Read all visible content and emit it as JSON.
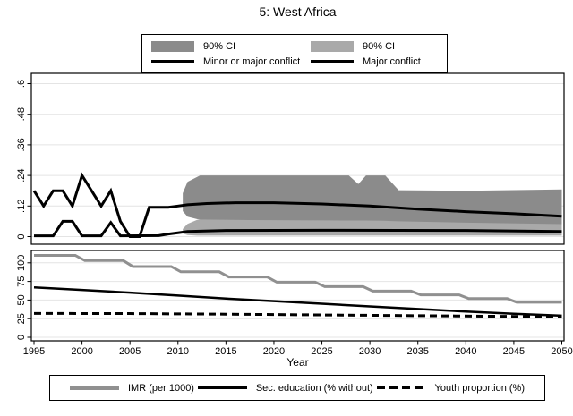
{
  "title": "5: West Africa",
  "colors": {
    "ci_dark": "#8b8b8b",
    "ci_light": "#a9a9a9",
    "gray_line": "#909090",
    "black": "#000000",
    "grid": "#e4e4e4",
    "border": "#000000"
  },
  "legend_top": {
    "items": [
      {
        "swatch": "box-dark",
        "label": "90% CI"
      },
      {
        "swatch": "box-light",
        "label": "90% CI"
      },
      {
        "swatch": "line-black",
        "label": "Minor or major conflict"
      },
      {
        "swatch": "line-black",
        "label": "Major conflict"
      }
    ]
  },
  "legend_bottom": {
    "items": [
      {
        "swatch": "line-gray",
        "label": "IMR (per 1000)"
      },
      {
        "swatch": "line-black",
        "label": "Sec. education (% without)"
      },
      {
        "swatch": "line-dashed",
        "label": "Youth proportion (%)"
      }
    ]
  },
  "chart_data": [
    {
      "id": "conflict-probability-panel",
      "type": "line",
      "ylim": [
        0,
        0.6
      ],
      "yticks": [
        0,
        0.12,
        0.24,
        0.36,
        0.48,
        0.6
      ],
      "ytick_labels": [
        "0",
        ".12",
        ".24",
        ".36",
        ".48",
        ".6"
      ],
      "x_range": [
        1995,
        2050
      ],
      "grid": true,
      "bands": [
        {
          "name": "90% CI Major conflict",
          "color_key": "ci_light",
          "x": [
            2010.5,
            2011,
            2012,
            2020,
            2035,
            2050
          ],
          "lower": [
            0.012,
            0.006,
            0.004,
            0.004,
            0.004,
            0.004
          ],
          "upper": [
            0.03,
            0.05,
            0.066,
            0.066,
            0.062,
            0.057
          ]
        },
        {
          "name": "90% CI Minor or major conflict",
          "color_key": "ci_dark",
          "x": [
            2010.5,
            2011,
            2012.3,
            2027.8,
            2028.8,
            2029.6,
            2031.6,
            2033,
            2040,
            2050
          ],
          "lower": [
            0.1,
            0.078,
            0.066,
            0.063,
            0.063,
            0.063,
            0.062,
            0.06,
            0.055,
            0.049
          ],
          "upper": [
            0.17,
            0.215,
            0.24,
            0.24,
            0.206,
            0.24,
            0.24,
            0.182,
            0.18,
            0.185
          ]
        }
      ],
      "series": [
        {
          "name": "Minor or major conflict",
          "color_key": "black",
          "width": 3,
          "points": [
            [
              1995,
              0.18
            ],
            [
              1996,
              0.12
            ],
            [
              1997,
              0.18
            ],
            [
              1998,
              0.18
            ],
            [
              1999,
              0.12
            ],
            [
              2000,
              0.24
            ],
            [
              2001,
              0.18
            ],
            [
              2002,
              0.12
            ],
            [
              2003,
              0.18
            ],
            [
              2004,
              0.06
            ],
            [
              2005,
              0
            ],
            [
              2006,
              0
            ],
            [
              2007,
              0.115
            ],
            [
              2008,
              0.115
            ],
            [
              2009,
              0.115
            ],
            [
              2010,
              0.12
            ],
            [
              2011,
              0.125
            ],
            [
              2013,
              0.13
            ],
            [
              2016,
              0.133
            ],
            [
              2020,
              0.133
            ],
            [
              2025,
              0.128
            ],
            [
              2030,
              0.12
            ],
            [
              2035,
              0.108
            ],
            [
              2040,
              0.098
            ],
            [
              2045,
              0.09
            ],
            [
              2050,
              0.08
            ]
          ]
        },
        {
          "name": "Major conflict",
          "color_key": "black",
          "width": 3,
          "points": [
            [
              1995,
              0.003
            ],
            [
              1997,
              0.003
            ],
            [
              1998,
              0.06
            ],
            [
              1999,
              0.06
            ],
            [
              2000,
              0.003
            ],
            [
              2002,
              0.003
            ],
            [
              2003,
              0.055
            ],
            [
              2004,
              0.003
            ],
            [
              2008,
              0.004
            ],
            [
              2009,
              0.01
            ],
            [
              2010,
              0.015
            ],
            [
              2011,
              0.02
            ],
            [
              2015,
              0.024
            ],
            [
              2025,
              0.025
            ],
            [
              2040,
              0.024
            ],
            [
              2050,
              0.02
            ]
          ]
        }
      ]
    },
    {
      "id": "covariates-panel",
      "type": "line",
      "xlabel": "Year",
      "ylim": [
        0,
        110
      ],
      "yticks": [
        0,
        25,
        50,
        75,
        100
      ],
      "ytick_labels": [
        "0",
        "25",
        "50",
        "75",
        "100"
      ],
      "xticks": [
        1995,
        2000,
        2005,
        2010,
        2015,
        2020,
        2025,
        2030,
        2035,
        2040,
        2045,
        2050
      ],
      "grid": true,
      "series": [
        {
          "name": "IMR (per 1000)",
          "color_key": "gray_line",
          "width": 3,
          "points": [
            [
              1995,
              110
            ],
            [
              1999.3,
              110
            ],
            [
              2000.3,
              103
            ],
            [
              2004.3,
              103
            ],
            [
              2005.3,
              95
            ],
            [
              2009.3,
              95
            ],
            [
              2010.3,
              88
            ],
            [
              2014.3,
              88
            ],
            [
              2015.3,
              81
            ],
            [
              2019.3,
              81
            ],
            [
              2020.3,
              74
            ],
            [
              2024.3,
              74
            ],
            [
              2025.3,
              68
            ],
            [
              2029.3,
              68
            ],
            [
              2030.3,
              62
            ],
            [
              2034.3,
              62
            ],
            [
              2035.3,
              57
            ],
            [
              2039.3,
              57
            ],
            [
              2040.3,
              52
            ],
            [
              2044.3,
              52
            ],
            [
              2045.3,
              47
            ],
            [
              2050,
              47
            ]
          ]
        },
        {
          "name": "Sec. education (% without)",
          "color_key": "black",
          "width": 2.5,
          "points": [
            [
              1995,
              67
            ],
            [
              2000,
              63.5
            ],
            [
              2005,
              60
            ],
            [
              2010,
              56
            ],
            [
              2015,
              52
            ],
            [
              2020,
              48.5
            ],
            [
              2025,
              45
            ],
            [
              2030,
              41.5
            ],
            [
              2035,
              38
            ],
            [
              2040,
              34.5
            ],
            [
              2045,
              31.5
            ],
            [
              2050,
              29
            ]
          ]
        },
        {
          "name": "Youth proportion (%)",
          "color_key": "black",
          "width": 3,
          "dash": "8,5",
          "points": [
            [
              1995,
              32
            ],
            [
              2005,
              31.8
            ],
            [
              2015,
              31
            ],
            [
              2025,
              30
            ],
            [
              2035,
              29
            ],
            [
              2045,
              28
            ],
            [
              2050,
              27.5
            ]
          ]
        }
      ]
    }
  ]
}
